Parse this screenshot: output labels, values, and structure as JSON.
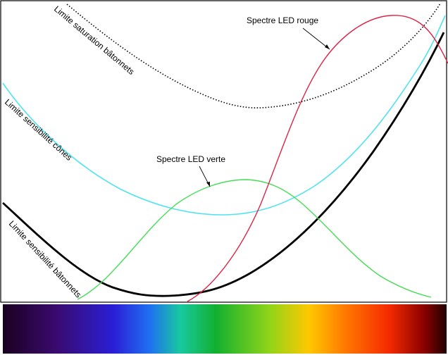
{
  "diagram": {
    "labels": {
      "saturation_batonnets": "Limite saturation bâtonnets",
      "sensibilite_cones": "Limite sensibilité cônes",
      "sensibilite_batonnets": "Limite sensibilité bâtonnets",
      "led_verte": "Spectre LED verte",
      "led_rouge": "Spectre LED rouge"
    },
    "colors": {
      "saturation_batonnets": "#000000",
      "sensibilite_cones": "#4fe3ef",
      "sensibilite_batonnets": "#000000",
      "led_verte": "#44dd55",
      "led_rouge": "#dd2244",
      "frame": "#000000"
    },
    "spectrum_bar": {
      "colors": [
        "#1a0020",
        "#3a0a6e",
        "#2a1fd6",
        "#1f6ff2",
        "#18c9a0",
        "#12b030",
        "#8fd41a",
        "#ffc800",
        "#ff7a00",
        "#f52a00",
        "#8a0000",
        "#200000"
      ]
    }
  }
}
